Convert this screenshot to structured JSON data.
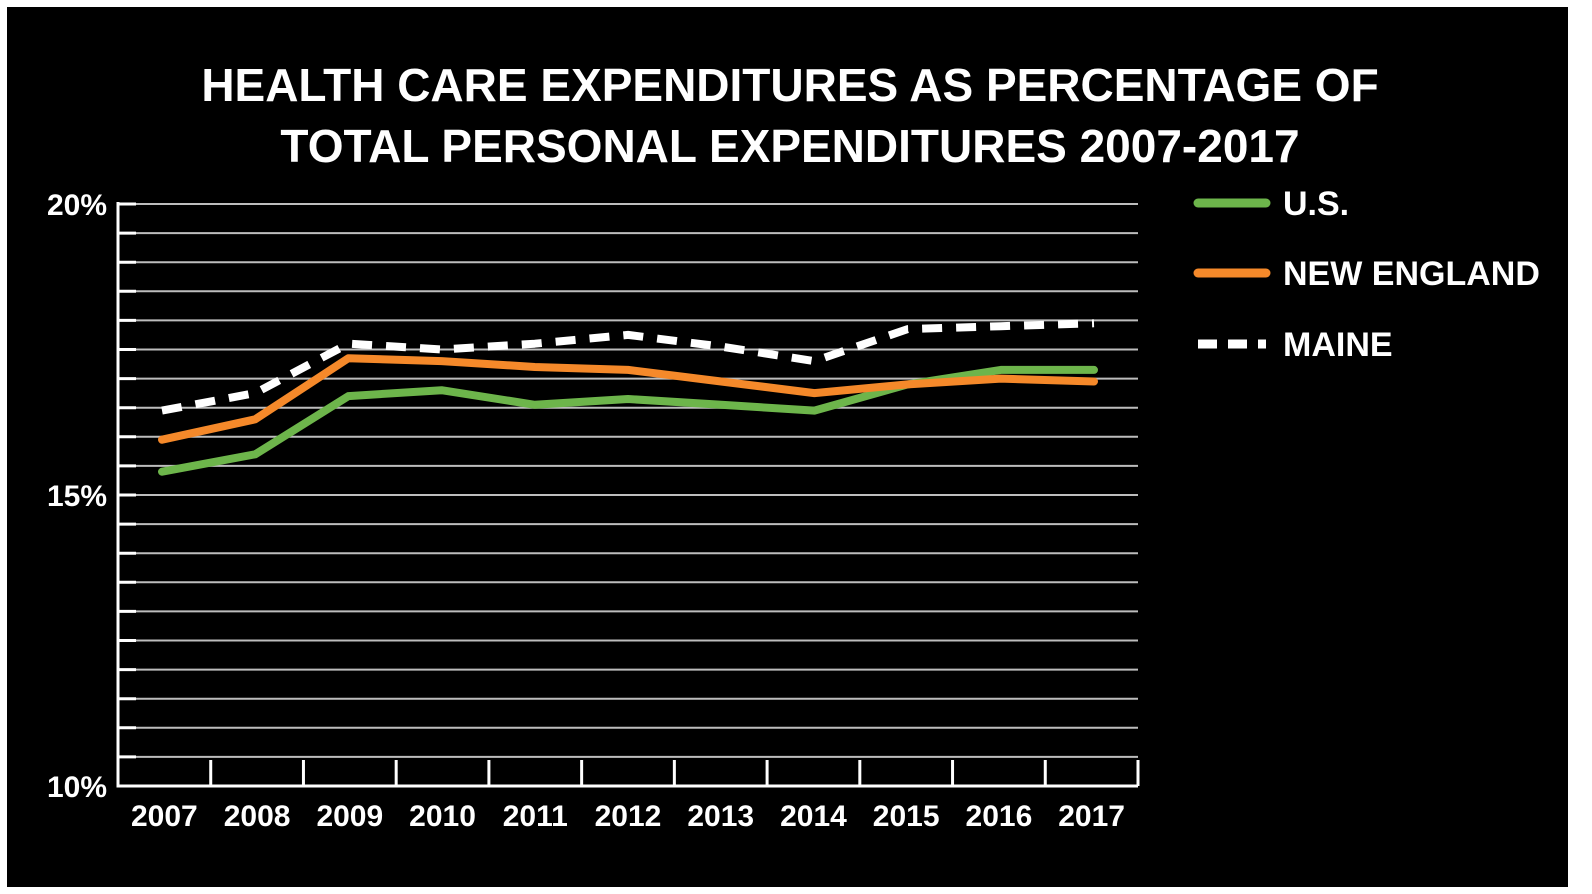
{
  "chart_data": {
    "type": "line",
    "title_lines": [
      "HEALTH CARE EXPENDITURES AS PERCENTAGE OF",
      "TOTAL PERSONAL EXPENDITURES 2007-2017"
    ],
    "xlabel": "",
    "ylabel": "",
    "x": [
      "2007",
      "2008",
      "2009",
      "2010",
      "2011",
      "2012",
      "2013",
      "2014",
      "2015",
      "2016",
      "2017"
    ],
    "ylim": [
      10,
      20
    ],
    "ytick_labels": [
      {
        "value": 20,
        "label": "20%"
      },
      {
        "value": 15,
        "label": "15%"
      },
      {
        "value": 10,
        "label": "10%"
      }
    ],
    "grid": true,
    "legend_position": "right",
    "series": [
      {
        "name": "U.S.",
        "color": "#6db54b",
        "style": "solid",
        "values": [
          15.4,
          15.7,
          16.7,
          16.8,
          16.55,
          16.65,
          16.55,
          16.45,
          16.9,
          17.15,
          17.15
        ]
      },
      {
        "name": "NEW ENGLAND",
        "color": "#f5892a",
        "style": "solid",
        "values": [
          15.95,
          16.3,
          17.35,
          17.3,
          17.2,
          17.15,
          16.95,
          16.75,
          16.9,
          17.0,
          16.95
        ]
      },
      {
        "name": "MAINE",
        "color": "#ffffff",
        "style": "dashed",
        "values": [
          16.45,
          16.75,
          17.6,
          17.5,
          17.6,
          17.75,
          17.55,
          17.3,
          17.85,
          17.9,
          17.95
        ]
      }
    ]
  }
}
